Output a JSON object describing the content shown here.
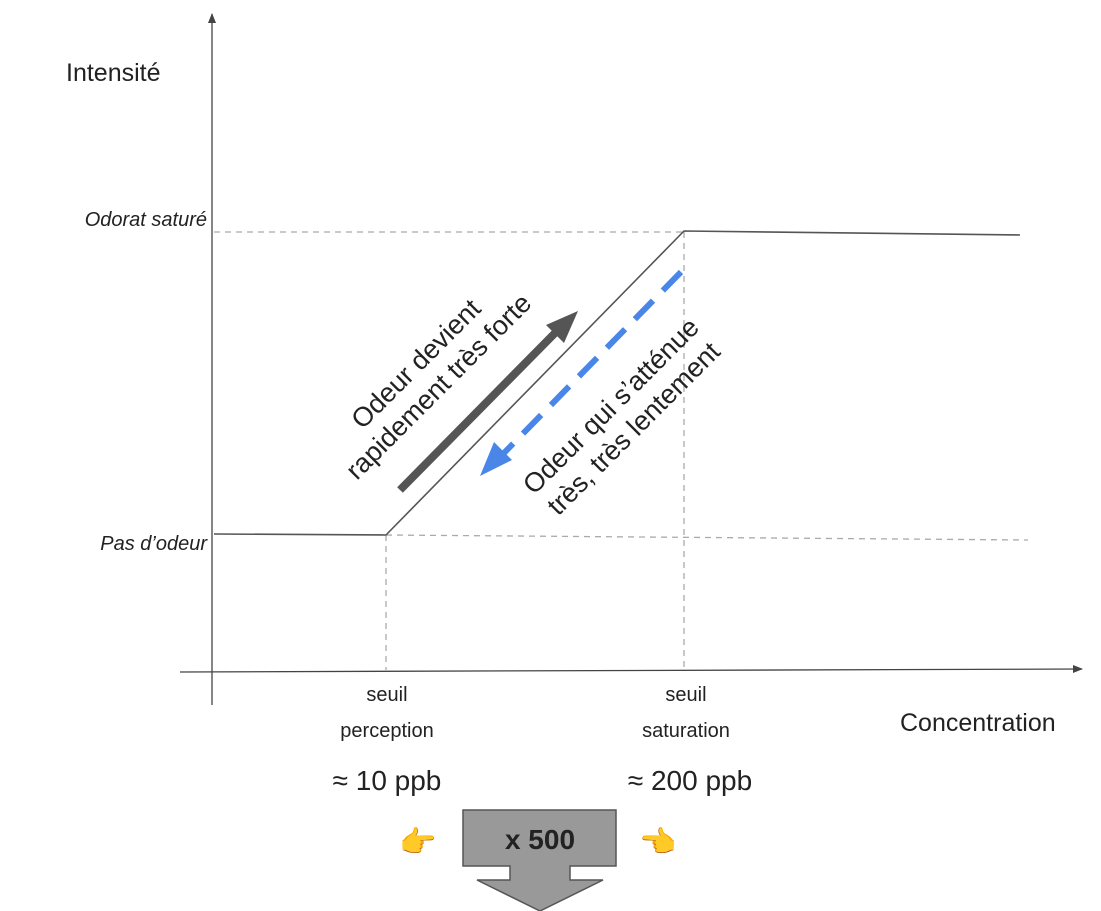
{
  "axes": {
    "y_label": "Intensité",
    "x_label": "Concentration"
  },
  "levels": {
    "saturated": "Odorat saturé",
    "no_odor": "Pas d’odeur"
  },
  "thresholds": {
    "perception": {
      "line1": "seuil",
      "line2": "perception",
      "value": "≈ 10 ppb"
    },
    "saturation": {
      "line1": "seuil",
      "line2": "saturation",
      "value": "≈ 200 ppb"
    }
  },
  "arrows": {
    "rise": {
      "line1": "Odeur devient",
      "line2": "rapidement très forte",
      "color": "#555555"
    },
    "fall": {
      "line1": "Odeur qui s’atténue",
      "line2": "très, très lentement",
      "color": "#4a86e8"
    }
  },
  "ratio": {
    "label": "x 500",
    "color": "#999999"
  },
  "pointers": {
    "left": "👉",
    "right": "👈",
    "color": "#f6b52f"
  }
}
